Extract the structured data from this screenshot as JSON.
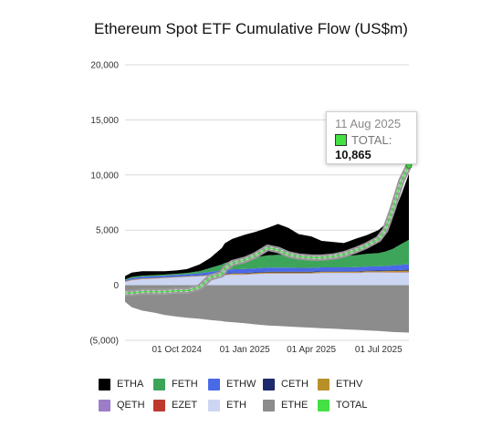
{
  "chart_data": {
    "type": "area",
    "title": "Ethereum Spot ETF Cumulative Flow (US$m)",
    "y_ticks": [
      "20,000",
      "15,000",
      "10,000",
      "5,000",
      "0",
      "(5,000)"
    ],
    "ylim": [
      -5000,
      20000
    ],
    "x_ticks": [
      {
        "date": "2024-10-01",
        "label": "01 Oct 2024"
      },
      {
        "date": "2025-01-01",
        "label": "01 Jan 2025"
      },
      {
        "date": "2025-04-01",
        "label": "01 Apr 2025"
      },
      {
        "date": "2025-07-01",
        "label": "01 Jul 2025"
      }
    ],
    "xlim": [
      "2024-07-23",
      "2025-08-11"
    ],
    "grid": true,
    "legend_position": "bottom",
    "x_dates": [
      "2024-07-23",
      "2024-08-01",
      "2024-08-15",
      "2024-09-01",
      "2024-09-15",
      "2024-10-01",
      "2024-10-15",
      "2024-11-01",
      "2024-11-15",
      "2024-12-01",
      "2024-12-05",
      "2024-12-15",
      "2025-01-01",
      "2025-01-15",
      "2025-02-01",
      "2025-02-15",
      "2025-03-01",
      "2025-03-15",
      "2025-04-01",
      "2025-04-15",
      "2025-05-01",
      "2025-05-15",
      "2025-06-01",
      "2025-06-15",
      "2025-07-01",
      "2025-07-10",
      "2025-07-20",
      "2025-08-01",
      "2025-08-11"
    ],
    "series": [
      {
        "name": "ETHA",
        "color": "#000000",
        "values": [
          300,
          400,
          400,
          350,
          300,
          300,
          350,
          600,
          900,
          1500,
          1800,
          2000,
          2200,
          2300,
          2500,
          2800,
          2500,
          2000,
          1800,
          1400,
          1300,
          1200,
          1500,
          1700,
          2100,
          2500,
          3000,
          4500,
          6000
        ]
      },
      {
        "name": "FETH",
        "color": "#3da55a",
        "values": [
          70,
          100,
          100,
          100,
          100,
          110,
          120,
          200,
          350,
          550,
          650,
          750,
          900,
          1000,
          1100,
          1150,
          1100,
          1050,
          1050,
          1000,
          1000,
          1000,
          1100,
          1150,
          1200,
          1300,
          1500,
          1900,
          2200
        ]
      },
      {
        "name": "ETHW",
        "color": "#4a69e6",
        "values": [
          100,
          130,
          150,
          150,
          150,
          160,
          170,
          200,
          250,
          300,
          320,
          340,
          360,
          370,
          380,
          380,
          370,
          360,
          350,
          350,
          350,
          350,
          360,
          370,
          380,
          400,
          430,
          470,
          500
        ]
      },
      {
        "name": "CETH",
        "color": "#1e2a6e",
        "values": [
          10,
          15,
          15,
          15,
          15,
          20,
          20,
          25,
          30,
          40,
          45,
          50,
          55,
          55,
          60,
          60,
          60,
          60,
          60,
          60,
          60,
          60,
          60,
          60,
          60,
          65,
          70,
          80,
          90
        ]
      },
      {
        "name": "ETHV",
        "color": "#b8902a",
        "values": [
          30,
          40,
          40,
          40,
          40,
          40,
          40,
          45,
          50,
          60,
          65,
          70,
          75,
          75,
          80,
          80,
          80,
          80,
          80,
          80,
          80,
          80,
          80,
          80,
          85,
          90,
          100,
          110,
          120
        ]
      },
      {
        "name": "QETH",
        "color": "#9b7dc8",
        "values": [
          10,
          10,
          10,
          10,
          10,
          10,
          10,
          10,
          15,
          20,
          20,
          25,
          25,
          25,
          25,
          25,
          25,
          25,
          25,
          25,
          25,
          25,
          25,
          25,
          25,
          25,
          25,
          30,
          30
        ]
      },
      {
        "name": "EZET",
        "color": "#c0392b",
        "values": [
          5,
          5,
          5,
          5,
          5,
          5,
          5,
          5,
          10,
          10,
          10,
          10,
          10,
          10,
          10,
          10,
          10,
          10,
          10,
          10,
          10,
          10,
          10,
          10,
          10,
          15,
          15,
          20,
          25
        ]
      },
      {
        "name": "ETH",
        "color": "#ccd6f2",
        "values": [
          300,
          450,
          550,
          600,
          650,
          700,
          750,
          800,
          850,
          900,
          900,
          950,
          950,
          1000,
          1050,
          1050,
          1050,
          1050,
          1050,
          1100,
          1100,
          1100,
          1100,
          1150,
          1150,
          1150,
          1150,
          1150,
          1150
        ]
      },
      {
        "name": "ETHE",
        "color": "#8c8c8c",
        "values": [
          -1500,
          -2000,
          -2300,
          -2500,
          -2700,
          -2850,
          -2950,
          -3050,
          -3150,
          -3250,
          -3300,
          -3350,
          -3450,
          -3550,
          -3650,
          -3700,
          -3750,
          -3800,
          -3850,
          -3900,
          -3950,
          -4000,
          -4050,
          -4100,
          -4150,
          -4200,
          -4250,
          -4280,
          -4300
        ]
      }
    ],
    "total": {
      "name": "TOTAL",
      "color": "#44e044",
      "values": [
        -700,
        -700,
        -600,
        -600,
        -600,
        -500,
        -500,
        -200,
        700,
        1000,
        1500,
        2000,
        2300,
        2700,
        3400,
        3200,
        2800,
        2600,
        2500,
        2500,
        2600,
        2800,
        3200,
        3600,
        4200,
        5000,
        6900,
        9500,
        10865
      ]
    },
    "tooltip": {
      "date": "11 Aug 2025",
      "series": "TOTAL:",
      "value": "10,865"
    }
  }
}
